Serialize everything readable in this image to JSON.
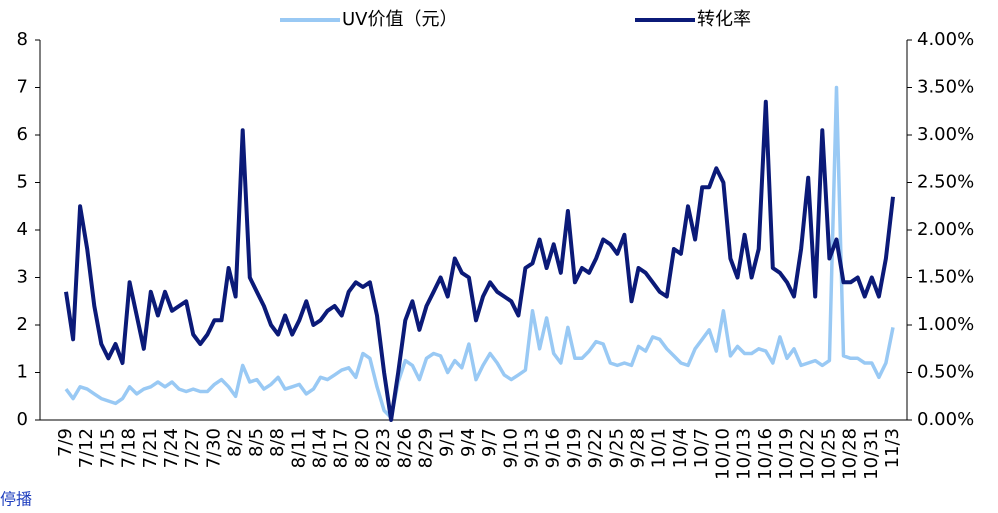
{
  "chart_data": {
    "type": "line",
    "annotation": "停播",
    "categories": [
      "7/9",
      null,
      null,
      "7/12",
      null,
      null,
      "7/15",
      null,
      null,
      "7/18",
      null,
      null,
      "7/21",
      null,
      null,
      "7/24",
      null,
      null,
      "7/27",
      null,
      null,
      "7/30",
      null,
      null,
      "8/2",
      null,
      null,
      "8/5",
      null,
      null,
      "8/8",
      null,
      null,
      "8/11",
      null,
      null,
      "8/14",
      null,
      null,
      "8/17",
      null,
      null,
      "8/20",
      null,
      null,
      "8/23",
      null,
      null,
      "8/26",
      null,
      null,
      "8/29",
      null,
      null,
      "9/1",
      null,
      null,
      "9/4",
      null,
      null,
      "9/7",
      null,
      null,
      "9/10",
      null,
      null,
      "9/13",
      null,
      null,
      "9/16",
      null,
      null,
      "9/19",
      null,
      null,
      "9/22",
      null,
      null,
      "9/25",
      null,
      null,
      "9/28",
      null,
      null,
      "10/1",
      null,
      null,
      "10/4",
      null,
      null,
      "10/7",
      null,
      null,
      "10/10",
      null,
      null,
      "10/13",
      null,
      null,
      "10/16",
      null,
      null,
      "10/19",
      null,
      null,
      "10/22",
      null,
      null,
      "10/25",
      null,
      null,
      "10/28",
      null,
      null,
      "10/31",
      null,
      null,
      "11/3"
    ],
    "series": [
      {
        "name": "UV价值（元）",
        "color": "#99c9f4",
        "axis": "y",
        "values": [
          0.65,
          0.45,
          0.7,
          0.65,
          0.55,
          0.45,
          0.4,
          0.35,
          0.45,
          0.7,
          0.55,
          0.65,
          0.7,
          0.8,
          0.7,
          0.8,
          0.65,
          0.6,
          0.65,
          0.6,
          0.6,
          0.75,
          0.85,
          0.7,
          0.5,
          1.15,
          0.8,
          0.85,
          0.65,
          0.75,
          0.9,
          0.65,
          0.7,
          0.75,
          0.55,
          0.65,
          0.9,
          0.85,
          0.95,
          1.05,
          1.1,
          0.9,
          1.4,
          1.3,
          0.7,
          0.2,
          0.05,
          0.8,
          1.25,
          1.15,
          0.85,
          1.3,
          1.4,
          1.35,
          1.0,
          1.25,
          1.1,
          1.6,
          0.85,
          1.15,
          1.4,
          1.2,
          0.95,
          0.85,
          0.95,
          1.05,
          2.3,
          1.5,
          2.15,
          1.4,
          1.2,
          1.95,
          1.3,
          1.3,
          1.45,
          1.65,
          1.6,
          1.2,
          1.15,
          1.2,
          1.15,
          1.55,
          1.45,
          1.75,
          1.7,
          1.5,
          1.35,
          1.2,
          1.15,
          1.5,
          1.7,
          1.9,
          1.45,
          2.3,
          1.35,
          1.55,
          1.4,
          1.4,
          1.5,
          1.45,
          1.2,
          1.75,
          1.3,
          1.5,
          1.15,
          1.2,
          1.25,
          1.15,
          1.25,
          7.0,
          1.35,
          1.3,
          1.3,
          1.2,
          1.2,
          0.9,
          1.2,
          1.95
        ]
      },
      {
        "name": "转化率",
        "color": "#0b1a78",
        "axis": "y2",
        "values": [
          1.35,
          0.85,
          2.25,
          1.8,
          1.2,
          0.8,
          0.65,
          0.8,
          0.6,
          1.45,
          1.1,
          0.75,
          1.35,
          1.1,
          1.35,
          1.15,
          1.2,
          1.25,
          0.9,
          0.8,
          0.9,
          1.05,
          1.05,
          1.6,
          1.3,
          3.05,
          1.5,
          1.35,
          1.2,
          1.0,
          0.9,
          1.1,
          0.9,
          1.05,
          1.25,
          1.0,
          1.05,
          1.15,
          1.2,
          1.1,
          1.35,
          1.45,
          1.4,
          1.45,
          1.1,
          0.5,
          0.0,
          0.5,
          1.05,
          1.25,
          0.95,
          1.2,
          1.35,
          1.5,
          1.3,
          1.7,
          1.55,
          1.5,
          1.05,
          1.3,
          1.45,
          1.35,
          1.3,
          1.25,
          1.1,
          1.6,
          1.65,
          1.9,
          1.6,
          1.85,
          1.55,
          2.2,
          1.45,
          1.6,
          1.55,
          1.7,
          1.9,
          1.85,
          1.75,
          1.95,
          1.25,
          1.6,
          1.55,
          1.45,
          1.35,
          1.3,
          1.8,
          1.75,
          2.25,
          1.9,
          2.45,
          2.45,
          2.65,
          2.5,
          1.7,
          1.5,
          1.95,
          1.5,
          1.8,
          3.35,
          1.6,
          1.55,
          1.45,
          1.3,
          1.8,
          2.55,
          1.3,
          3.05,
          1.7,
          1.9,
          1.45,
          1.45,
          1.5,
          1.3,
          1.5,
          1.3,
          1.7,
          2.35
        ]
      }
    ],
    "ylim": [
      0,
      8
    ],
    "yticks": [
      0,
      1,
      2,
      3,
      4,
      5,
      6,
      7,
      8
    ],
    "y2lim": [
      0,
      4
    ],
    "y2ticks": [
      {
        "value": 0,
        "label": "0.00%"
      },
      {
        "value": 0.5,
        "label": "0.50%"
      },
      {
        "value": 1,
        "label": "1.00%"
      },
      {
        "value": 1.5,
        "label": "1.50%"
      },
      {
        "value": 2,
        "label": "2.00%"
      },
      {
        "value": 2.5,
        "label": "2.50%"
      },
      {
        "value": 3,
        "label": "3.00%"
      },
      {
        "value": 3.5,
        "label": "3.50%"
      },
      {
        "value": 4,
        "label": "4.00%"
      }
    ],
    "legend": "top"
  }
}
